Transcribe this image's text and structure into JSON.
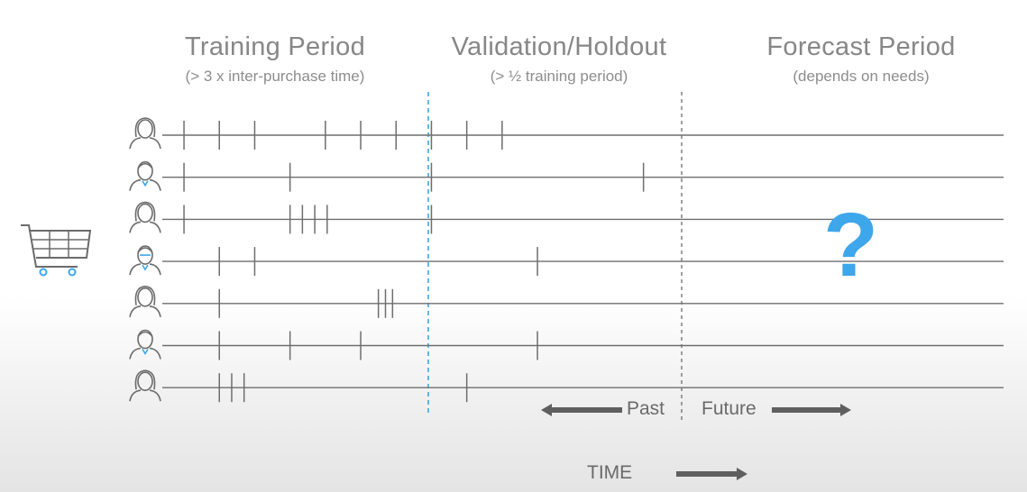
{
  "periods": {
    "training": {
      "title": "Training Period",
      "subtitle": "(> 3 x inter-purchase time)"
    },
    "validation": {
      "title": "Validation/Holdout",
      "subtitle": "(> ½ training period)"
    },
    "forecast": {
      "title": "Forecast Period",
      "subtitle": "(depends on needs)"
    }
  },
  "unknown_marker": "?",
  "labels": {
    "past": "Past",
    "future": "Future",
    "time": "TIME"
  },
  "icons": {
    "cart": "shopping-cart-icon",
    "customer": "customer-avatar-icon"
  },
  "colors": {
    "text": "#878787",
    "line": "#6e6e6e",
    "accent": "#3ea6ea",
    "arrow": "#5f5f5f"
  },
  "customers": [
    {
      "avatar": "woman-long-hair",
      "purchases": [
        1,
        2,
        3,
        5,
        6,
        7,
        8,
        9,
        10
      ]
    },
    {
      "avatar": "man-tie",
      "purchases": [
        1,
        4,
        8,
        14
      ]
    },
    {
      "avatar": "woman-bob",
      "purchases": [
        1,
        4,
        4.35,
        4.7,
        5.05,
        8
      ]
    },
    {
      "avatar": "man-glasses-bowtie",
      "purchases": [
        2,
        3,
        11
      ]
    },
    {
      "avatar": "woman-short-hair",
      "purchases": [
        2,
        6.5,
        6.7,
        6.9
      ]
    },
    {
      "avatar": "man-tie",
      "purchases": [
        2,
        4,
        6,
        11
      ]
    },
    {
      "avatar": "woman-ponytail",
      "purchases": [
        2,
        2.35,
        2.7,
        9
      ]
    }
  ]
}
